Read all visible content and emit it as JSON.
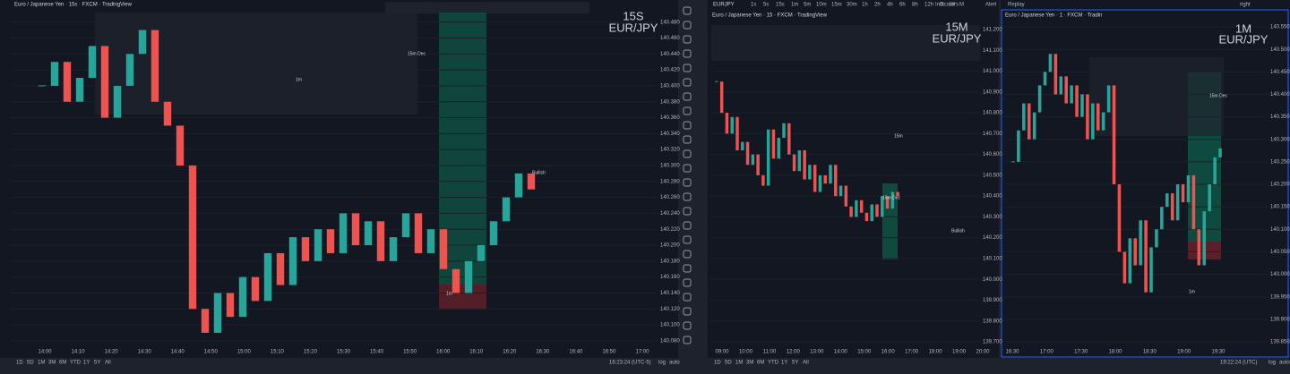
{
  "top_bar": {
    "symbol": "EURJPY",
    "intervals": [
      "1s",
      "5s",
      "15s",
      "1m",
      "5m",
      "10m",
      "15m",
      "30m",
      "1h",
      "2h",
      "4h",
      "6h",
      "8h",
      "12h",
      "D",
      "W",
      "M"
    ],
    "indicators": "Indicators",
    "alert": "Alert",
    "replay": "Replay",
    "layout": "right"
  },
  "panels": [
    {
      "title": "Euro / Japanese Yen · 15s · FXCM · TradingView",
      "interval_label": "15S",
      "symbol_label": "EUR/JPY",
      "ylim": [
        140.072,
        140.492
      ],
      "yticks": [
        {
          "value": 140.48,
          "label": "140.480"
        },
        {
          "value": 140.46,
          "label": "140.460"
        },
        {
          "value": 140.44,
          "label": "140.440"
        },
        {
          "value": 140.42,
          "label": "140.420"
        },
        {
          "value": 140.4,
          "label": "140.400"
        },
        {
          "value": 140.38,
          "label": "140.380"
        },
        {
          "value": 140.36,
          "label": "140.360"
        },
        {
          "value": 140.34,
          "label": "140.340"
        },
        {
          "value": 140.32,
          "label": "140.320"
        },
        {
          "value": 140.3,
          "label": "140.300"
        },
        {
          "value": 140.28,
          "label": "140.280"
        },
        {
          "value": 140.26,
          "label": "140.260"
        },
        {
          "value": 140.24,
          "label": "140.240"
        },
        {
          "value": 140.22,
          "label": "140.220"
        },
        {
          "value": 140.2,
          "label": "140.200"
        },
        {
          "value": 140.18,
          "label": "140.180"
        },
        {
          "value": 140.16,
          "label": "140.160"
        },
        {
          "value": 140.14,
          "label": "140.140"
        },
        {
          "value": 140.12,
          "label": "140.120"
        },
        {
          "value": 140.1,
          "label": "140.100"
        },
        {
          "value": 140.08,
          "label": "140.080"
        }
      ],
      "time_labels": [
        "14:00",
        "14:10",
        "14:20",
        "14:30",
        "14:40",
        "14:50",
        "15:00",
        "15:10",
        "15:20",
        "15:30",
        "15:40",
        "15:50",
        "16:00",
        "16:10",
        "16:20",
        "16:30",
        "16:40",
        "16:50",
        "17:00"
      ],
      "closes": [
        140.4,
        140.43,
        140.38,
        140.41,
        140.45,
        140.36,
        140.4,
        140.44,
        140.47,
        140.38,
        140.35,
        140.3,
        140.12,
        140.09,
        140.14,
        140.11,
        140.16,
        140.13,
        140.19,
        140.15,
        140.21,
        140.18,
        140.22,
        140.19,
        140.24,
        140.2,
        140.23,
        140.18,
        140.21,
        140.24,
        140.19,
        140.22,
        140.17,
        140.14,
        140.18,
        140.2,
        140.23,
        140.26,
        140.29,
        140.27
      ],
      "annotations": [
        "15m Dec",
        "1m",
        "Bullish",
        "1m"
      ],
      "ranges": [
        "1D",
        "5D",
        "1M",
        "3M",
        "6M",
        "YTD",
        "1Y",
        "5Y",
        "All"
      ],
      "clock": "16:23:24 (UTC-5)",
      "log": "log",
      "auto": "auto"
    },
    {
      "title": "Euro / Japanese Yen · 15 · FXCM · TradingView",
      "interval_label": "15M",
      "symbol_label": "EUR/JPY",
      "ylim": [
        139.674,
        141.282
      ],
      "yticks": [
        {
          "value": 141.2,
          "label": "141.200"
        },
        {
          "value": 141.1,
          "label": "141.100"
        },
        {
          "value": 141,
          "label": "141.000"
        },
        {
          "value": 140.9,
          "label": "140.900"
        },
        {
          "value": 140.8,
          "label": "140.800"
        },
        {
          "value": 140.7,
          "label": "140.700"
        },
        {
          "value": 140.6,
          "label": "140.600"
        },
        {
          "value": 140.5,
          "label": "140.500"
        },
        {
          "value": 140.4,
          "label": "140.400"
        },
        {
          "value": 140.3,
          "label": "140.300"
        },
        {
          "value": 140.2,
          "label": "140.200"
        },
        {
          "value": 140.1,
          "label": "140.100"
        },
        {
          "value": 140,
          "label": "140.000"
        },
        {
          "value": 139.9,
          "label": "139.900"
        },
        {
          "value": 139.8,
          "label": "139.800"
        },
        {
          "value": 139.7,
          "label": "139.700"
        }
      ],
      "time_labels": [
        "09:00",
        "10:00",
        "11:00",
        "12:00",
        "13:00",
        "14:00",
        "15:00",
        "16:00",
        "17:00",
        "18:00",
        "19:00",
        "20:00"
      ],
      "closes": [
        140.95,
        140.8,
        140.7,
        140.78,
        140.62,
        140.66,
        140.55,
        140.6,
        140.5,
        140.45,
        140.72,
        140.58,
        140.68,
        140.75,
        140.6,
        140.52,
        140.62,
        140.48,
        140.55,
        140.42,
        140.5,
        140.46,
        140.55,
        140.4,
        140.45,
        140.35,
        140.3,
        140.38,
        140.32,
        140.28,
        140.36,
        140.3,
        140.4,
        140.34,
        140.42,
        140.4
      ],
      "annotations": [
        "15m",
        "15m Dec",
        "Bullish"
      ],
      "ranges": [
        "1D",
        "5D",
        "1M",
        "3M",
        "6M",
        "YTD",
        "1Y",
        "5Y",
        "All"
      ]
    },
    {
      "title": "Euro / Japanese Yen · 1 · FXCM · Tradin",
      "interval_label": "1M",
      "symbol_label": "EUR/JPY",
      "ylim": [
        139.838,
        140.582
      ],
      "yticks": [
        {
          "value": 140.55,
          "label": "140.550"
        },
        {
          "value": 140.5,
          "label": "140.500"
        },
        {
          "value": 140.45,
          "label": "140.450"
        },
        {
          "value": 140.4,
          "label": "140.400"
        },
        {
          "value": 140.35,
          "label": "140.350"
        },
        {
          "value": 140.3,
          "label": "140.300"
        },
        {
          "value": 140.25,
          "label": "140.250"
        },
        {
          "value": 140.2,
          "label": "140.200"
        },
        {
          "value": 140.15,
          "label": "140.150"
        },
        {
          "value": 140.1,
          "label": "140.100"
        },
        {
          "value": 140.05,
          "label": "140.050"
        },
        {
          "value": 140,
          "label": "140.000"
        },
        {
          "value": 139.95,
          "label": "139.950"
        },
        {
          "value": 139.9,
          "label": "139.900"
        },
        {
          "value": 139.85,
          "label": "139.850"
        }
      ],
      "time_labels": [
        "16:30",
        "17:00",
        "17:30",
        "18:00",
        "18:30",
        "19:00",
        "19:30"
      ],
      "closes": [
        140.25,
        140.32,
        140.38,
        140.3,
        140.36,
        140.42,
        140.45,
        140.49,
        140.4,
        140.44,
        140.38,
        140.42,
        140.35,
        140.4,
        140.3,
        140.38,
        140.32,
        140.36,
        140.42,
        140.2,
        140.05,
        139.98,
        140.08,
        140.02,
        140.12,
        139.96,
        140.06,
        140.1,
        140.15,
        140.18,
        140.12,
        140.2,
        140.16,
        140.22,
        140.1,
        140.02,
        140.14,
        140.2,
        140.26,
        140.28
      ],
      "annotations": [
        "15m Dec",
        "1m"
      ],
      "clock": "19:22:24 (UTC)",
      "log": "log",
      "auto": "auto"
    }
  ]
}
